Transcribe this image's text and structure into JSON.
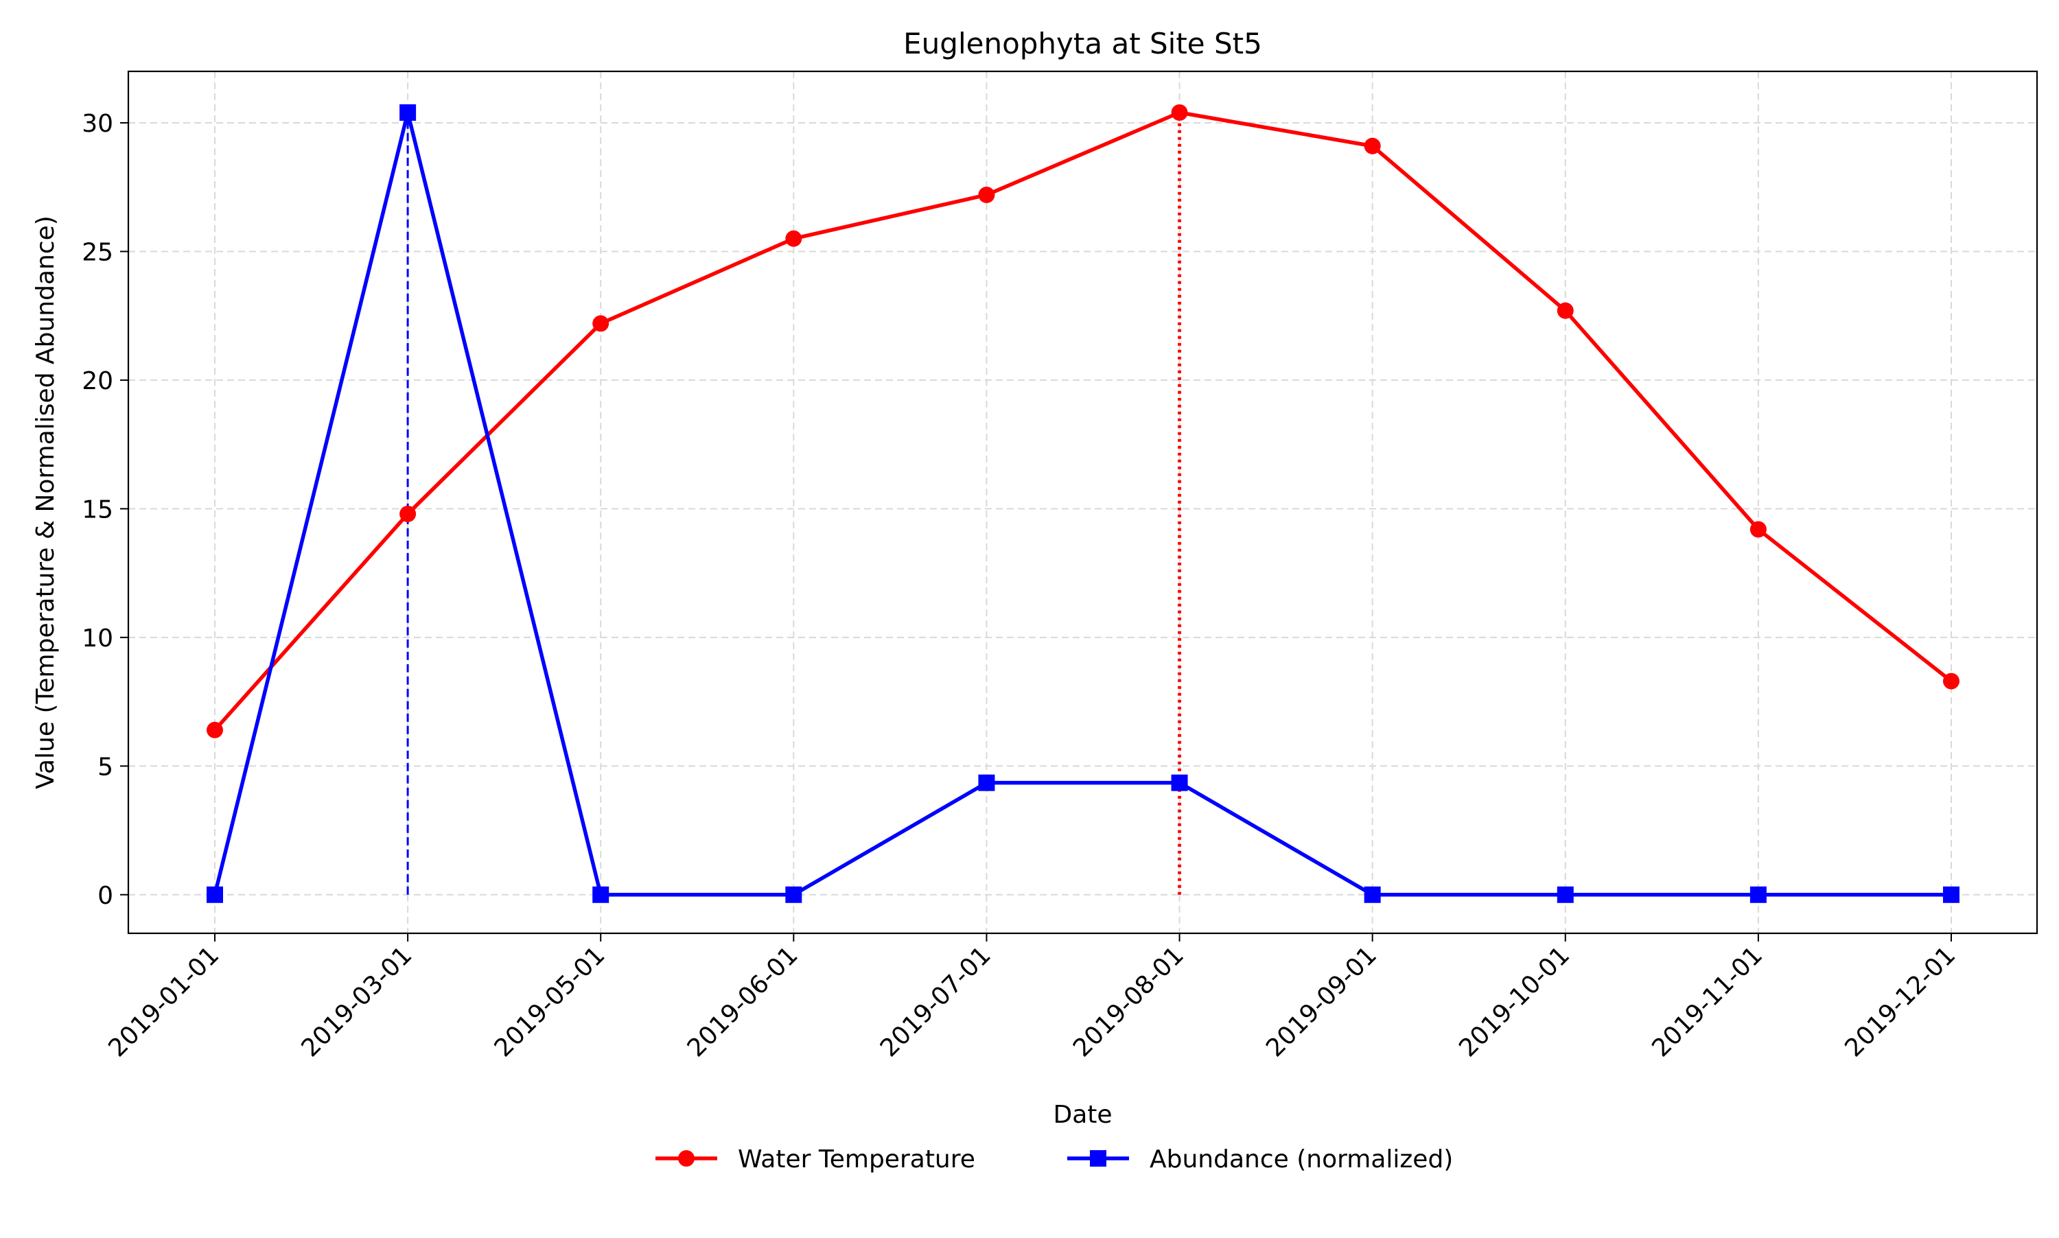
{
  "chart_data": {
    "type": "line",
    "title": "Euglenophyta at Site St5",
    "xlabel": "Date",
    "ylabel": "Value (Temperature & Normalised Abundance)",
    "categories": [
      "2019-01-01",
      "2019-03-01",
      "2019-05-01",
      "2019-06-01",
      "2019-07-01",
      "2019-08-01",
      "2019-09-01",
      "2019-10-01",
      "2019-11-01",
      "2019-12-01"
    ],
    "ylim": [
      -1.5,
      32
    ],
    "yticks": [
      0,
      5,
      10,
      15,
      20,
      25,
      30
    ],
    "grid": true,
    "legend_position": "bottom-center",
    "series": [
      {
        "name": "Water Temperature",
        "color": "#ff0000",
        "marker": "circle",
        "values": [
          6.4,
          14.8,
          22.2,
          25.5,
          27.2,
          30.4,
          29.1,
          22.7,
          14.2,
          8.3
        ]
      },
      {
        "name": "Abundance (normalized)",
        "color": "#0000ff",
        "marker": "square",
        "values": [
          0,
          30.4,
          0,
          0,
          4.35,
          4.35,
          0,
          0,
          0,
          0
        ]
      }
    ],
    "annotations": [
      {
        "type": "vline",
        "category": "2019-03-01",
        "from": 0,
        "to": 30.4,
        "color": "#0000ff",
        "style": "dashed"
      },
      {
        "type": "vline",
        "category": "2019-08-01",
        "from": 0,
        "to": 30.4,
        "color": "#ff0000",
        "style": "dotted"
      }
    ]
  }
}
